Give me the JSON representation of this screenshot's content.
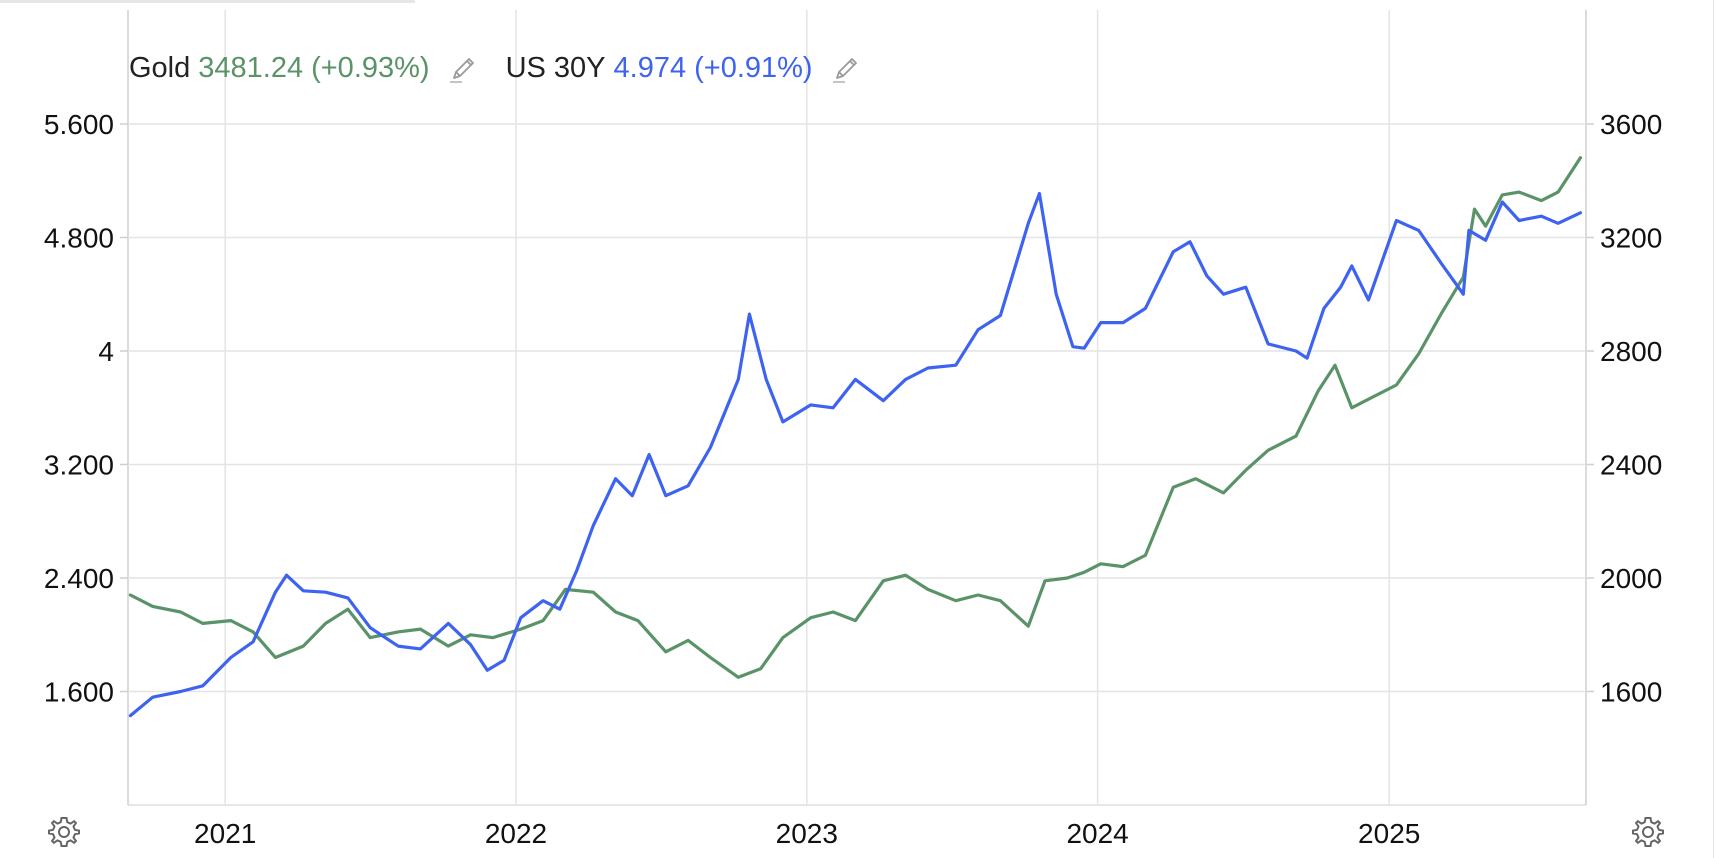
{
  "legend": {
    "gold": {
      "symbol": "Gold",
      "value": "3481.24",
      "change": "(+0.93%)",
      "color": "#5a9367",
      "icon": "pencil-icon"
    },
    "us30y": {
      "symbol": "US 30Y",
      "value": "4.974",
      "change": "(+0.91%)",
      "color": "#3d63f0",
      "icon": "pencil-icon"
    }
  },
  "icons": {
    "settings_left": "gear-icon",
    "settings_right": "gear-icon"
  },
  "chart_data": {
    "type": "line",
    "x_ticks": [
      "2021",
      "2022",
      "2023",
      "2024",
      "2025"
    ],
    "x_range": [
      "2020-09-01",
      "2025-09-05"
    ],
    "left_axis": {
      "ticks": [
        "5.600",
        "4.800",
        "4",
        "3.200",
        "2.400",
        "1.600"
      ],
      "tick_values": [
        5.6,
        4.8,
        4.0,
        3.2,
        2.4,
        1.6
      ],
      "range": [
        0.8,
        5.6
      ]
    },
    "right_axis": {
      "ticks": [
        "3600",
        "3200",
        "2800",
        "2400",
        "2000",
        "1600"
      ],
      "tick_values": [
        3600,
        3200,
        2800,
        2400,
        2000,
        1600
      ],
      "range": [
        1200,
        3600
      ]
    },
    "grid": true,
    "series": [
      {
        "name": "US 30Y",
        "axis": "left",
        "color": "#3d63f0",
        "x": [
          "2020-09-04",
          "2020-10-02",
          "2020-11-06",
          "2020-12-04",
          "2021-01-08",
          "2021-02-05",
          "2021-03-05",
          "2021-03-19",
          "2021-04-09",
          "2021-05-07",
          "2021-06-04",
          "2021-07-02",
          "2021-08-06",
          "2021-09-03",
          "2021-10-08",
          "2021-11-05",
          "2021-11-26",
          "2021-12-17",
          "2022-01-07",
          "2022-02-04",
          "2022-02-25",
          "2022-03-18",
          "2022-04-08",
          "2022-05-06",
          "2022-05-27",
          "2022-06-17",
          "2022-07-08",
          "2022-08-05",
          "2022-09-02",
          "2022-10-07",
          "2022-10-21",
          "2022-11-11",
          "2022-12-02",
          "2023-01-06",
          "2023-02-03",
          "2023-03-03",
          "2023-04-07",
          "2023-05-05",
          "2023-06-02",
          "2023-07-07",
          "2023-08-04",
          "2023-09-01",
          "2023-10-06",
          "2023-10-20",
          "2023-11-10",
          "2023-12-01",
          "2023-12-15",
          "2024-01-05",
          "2024-02-02",
          "2024-03-01",
          "2024-04-05",
          "2024-04-26",
          "2024-05-17",
          "2024-06-07",
          "2024-07-05",
          "2024-08-02",
          "2024-09-06",
          "2024-09-20",
          "2024-10-11",
          "2024-11-01",
          "2024-11-15",
          "2024-12-06",
          "2025-01-10",
          "2025-02-07",
          "2025-03-07",
          "2025-04-04",
          "2025-04-11",
          "2025-05-02",
          "2025-05-23",
          "2025-06-13",
          "2025-07-11",
          "2025-08-01",
          "2025-08-29"
        ],
        "y": [
          1.43,
          1.56,
          1.6,
          1.64,
          1.84,
          1.95,
          2.3,
          2.42,
          2.31,
          2.3,
          2.26,
          2.05,
          1.92,
          1.9,
          2.08,
          1.93,
          1.75,
          1.82,
          2.12,
          2.24,
          2.18,
          2.45,
          2.77,
          3.1,
          2.98,
          3.27,
          2.98,
          3.05,
          3.32,
          3.8,
          4.26,
          3.8,
          3.5,
          3.62,
          3.6,
          3.8,
          3.65,
          3.8,
          3.88,
          3.9,
          4.15,
          4.25,
          4.9,
          5.11,
          4.4,
          4.03,
          4.02,
          4.2,
          4.2,
          4.3,
          4.7,
          4.77,
          4.53,
          4.4,
          4.45,
          4.05,
          4.0,
          3.95,
          4.3,
          4.45,
          4.6,
          4.36,
          4.92,
          4.85,
          4.62,
          4.4,
          4.85,
          4.78,
          5.05,
          4.92,
          4.95,
          4.9,
          4.974
        ]
      },
      {
        "name": "Gold",
        "axis": "right",
        "color": "#5a9367",
        "x": [
          "2020-09-04",
          "2020-10-02",
          "2020-11-06",
          "2020-12-04",
          "2021-01-08",
          "2021-02-05",
          "2021-03-05",
          "2021-04-09",
          "2021-05-07",
          "2021-06-04",
          "2021-07-02",
          "2021-08-06",
          "2021-09-03",
          "2021-10-08",
          "2021-11-05",
          "2021-12-03",
          "2022-01-07",
          "2022-02-04",
          "2022-03-04",
          "2022-04-08",
          "2022-05-06",
          "2022-06-03",
          "2022-07-08",
          "2022-08-05",
          "2022-09-02",
          "2022-10-07",
          "2022-11-04",
          "2022-12-02",
          "2023-01-06",
          "2023-02-03",
          "2023-03-03",
          "2023-04-07",
          "2023-05-05",
          "2023-06-02",
          "2023-07-07",
          "2023-08-04",
          "2023-09-01",
          "2023-10-06",
          "2023-10-27",
          "2023-11-24",
          "2023-12-15",
          "2024-01-05",
          "2024-02-02",
          "2024-03-01",
          "2024-04-05",
          "2024-05-03",
          "2024-06-07",
          "2024-07-05",
          "2024-08-02",
          "2024-09-06",
          "2024-10-04",
          "2024-10-25",
          "2024-11-15",
          "2024-12-06",
          "2025-01-10",
          "2025-02-07",
          "2025-03-07",
          "2025-04-04",
          "2025-04-18",
          "2025-05-02",
          "2025-05-23",
          "2025-06-13",
          "2025-07-11",
          "2025-08-01",
          "2025-08-29"
        ],
        "y": [
          1940,
          1900,
          1880,
          1840,
          1850,
          1810,
          1720,
          1760,
          1840,
          1890,
          1790,
          1810,
          1820,
          1760,
          1800,
          1790,
          1820,
          1850,
          1960,
          1950,
          1880,
          1850,
          1740,
          1780,
          1720,
          1650,
          1680,
          1790,
          1860,
          1880,
          1850,
          1990,
          2010,
          1960,
          1920,
          1940,
          1920,
          1830,
          1990,
          2000,
          2020,
          2050,
          2040,
          2080,
          2320,
          2350,
          2300,
          2380,
          2450,
          2500,
          2660,
          2750,
          2600,
          2630,
          2680,
          2790,
          2930,
          3060,
          3300,
          3240,
          3350,
          3360,
          3330,
          3360,
          3481.24
        ]
      }
    ]
  }
}
